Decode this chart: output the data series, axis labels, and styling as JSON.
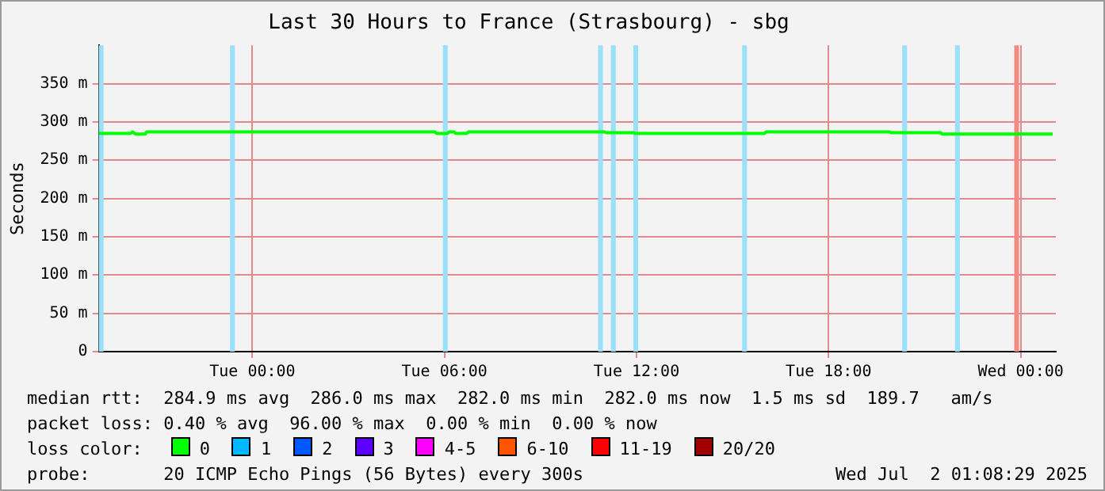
{
  "chart_data": {
    "type": "line",
    "title": "Last 30 Hours to France (Strasbourg) - sbg",
    "ylabel": "Seconds",
    "legend_title": "loss color:",
    "legend": "bottom",
    "grid": true,
    "marker": "none",
    "line_style": "solid",
    "xlim": [
      "2025-06-30T19:12",
      "2025-07-02T01:06"
    ],
    "xticks": [
      {
        "value": "2025-07-01T00:00",
        "label": "Tue 00:00"
      },
      {
        "value": "2025-07-01T06:00",
        "label": "Tue 06:00"
      },
      {
        "value": "2025-07-01T12:00",
        "label": "Tue 12:00"
      },
      {
        "value": "2025-07-01T18:00",
        "label": "Tue 18:00"
      },
      {
        "value": "2025-07-02T00:00",
        "label": "Wed 00:00"
      }
    ],
    "ylim": [
      0,
      400
    ],
    "yticks": [
      0,
      {
        "value": 50,
        "label": "50 m"
      },
      {
        "value": 100,
        "label": "100 m"
      },
      {
        "value": 150,
        "label": "150 m"
      },
      {
        "value": 200,
        "label": "200 m"
      },
      {
        "value": 250,
        "label": "250 m"
      },
      {
        "value": 300,
        "label": "300 m"
      },
      {
        "value": 350,
        "label": "350 m"
      }
    ],
    "series": [
      {
        "name": "0",
        "color": "#00ff00",
        "x": [
          "2025-06-30T19:12",
          "2025-06-30T20:12",
          "2025-06-30T20:15",
          "2025-06-30T20:21",
          "2025-06-30T20:39",
          "2025-06-30T20:42",
          "2025-07-01T05:42",
          "2025-07-01T05:45",
          "2025-07-01T06:06",
          "2025-07-01T06:09",
          "2025-07-01T06:18",
          "2025-07-01T06:21",
          "2025-07-01T06:42",
          "2025-07-01T06:45",
          "2025-07-01T11:00",
          "2025-07-01T11:03",
          "2025-07-01T11:54",
          "2025-07-01T11:57",
          "2025-07-01T16:00",
          "2025-07-01T16:03",
          "2025-07-01T19:54",
          "2025-07-01T19:57",
          "2025-07-01T21:30",
          "2025-07-01T21:33",
          "2025-07-02T01:00"
        ],
        "values": [
          285,
          285,
          287,
          284,
          284,
          287,
          287,
          285,
          285,
          287,
          287,
          285,
          285,
          287,
          287,
          286,
          286,
          285,
          285,
          287,
          287,
          286,
          286,
          284,
          284
        ]
      },
      {
        "name": "1",
        "color": "#00b8ff"
      },
      {
        "name": "2",
        "color": "#0059ff"
      },
      {
        "name": "3",
        "color": "#5e00ff"
      },
      {
        "name": "4-5",
        "color": "#ff00fe"
      },
      {
        "name": "6-10",
        "color": "#ff5500"
      },
      {
        "name": "11-19",
        "color": "#ff0000"
      },
      {
        "name": "20/20",
        "color": "#a10000"
      }
    ],
    "bands": [
      {
        "axis": "x",
        "from": "2025-06-30T19:12",
        "to": "2025-06-30T19:21",
        "color": "#99e0f8"
      },
      {
        "axis": "x",
        "from": "2025-06-30T23:18",
        "to": "2025-06-30T23:27",
        "color": "#99e0f8"
      },
      {
        "axis": "x",
        "from": "2025-07-01T05:57",
        "to": "2025-07-01T06:06",
        "color": "#99e0f8"
      },
      {
        "axis": "x",
        "from": "2025-07-01T10:48",
        "to": "2025-07-01T10:57",
        "color": "#99e0f8"
      },
      {
        "axis": "x",
        "from": "2025-07-01T11:12",
        "to": "2025-07-01T11:21",
        "color": "#99e0f8"
      },
      {
        "axis": "x",
        "from": "2025-07-01T11:54",
        "to": "2025-07-01T12:03",
        "color": "#99e0f8"
      },
      {
        "axis": "x",
        "from": "2025-07-01T15:18",
        "to": "2025-07-01T15:27",
        "color": "#99e0f8"
      },
      {
        "axis": "x",
        "from": "2025-07-01T20:18",
        "to": "2025-07-01T20:27",
        "color": "#99e0f8"
      },
      {
        "axis": "x",
        "from": "2025-07-01T21:57",
        "to": "2025-07-01T22:06",
        "color": "#99e0f8"
      },
      {
        "axis": "x",
        "from": "2025-07-01T23:48",
        "to": "2025-07-01T23:57",
        "color": "#f28a80"
      }
    ],
    "annotations": [
      "median rtt:  284.9 ms avg  286.0 ms max  282.0 ms min  282.0 ms now  1.5 ms sd  189.7   am/s",
      "packet loss: 0.40 % avg  96.00 % max  0.00 % min  0.00 % now",
      "probe:       20 ICMP Echo Pings (56 Bytes) every 300s",
      "Wed Jul  2 01:08:29 2025"
    ]
  }
}
